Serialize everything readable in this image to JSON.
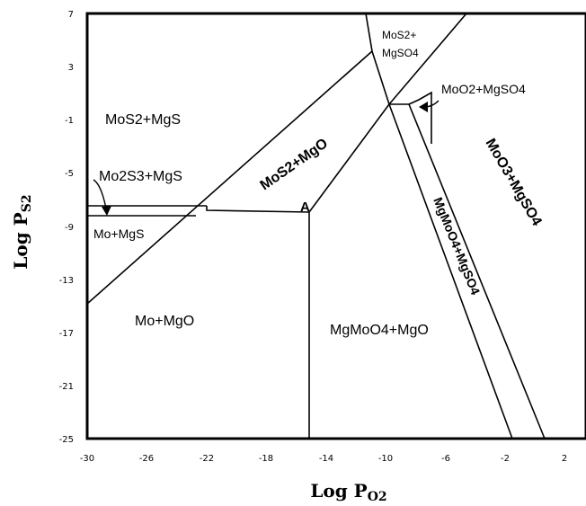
{
  "diagram": {
    "x_axis": {
      "title": "Log P",
      "subscript": "O2",
      "ticks": [
        "-30",
        "-26",
        "-22",
        "-18",
        "-14",
        "-10",
        "-6",
        "-2",
        "2"
      ]
    },
    "y_axis": {
      "title": "Log P",
      "subscript": "S2",
      "ticks": [
        "7",
        "3",
        "-1",
        "-5",
        "-9",
        "-13",
        "-17",
        "-21",
        "-25"
      ]
    },
    "regions": {
      "mos2_mgs": "MoS2+MgS",
      "mo2s3_mgs": "Mo2S3+MgS",
      "mo_mgs": "Mo+MgS",
      "mo_mgo": "Mo+MgO",
      "mos2_mgo": "MoS2+MgO",
      "mos2_mgso4_line1": "MoS2+",
      "mos2_mgso4_line2": "MgSO4",
      "moo2_mgso4": "MoO2+MgSO4",
      "moo3_mgso4": "MoO3+MgSO4",
      "mgmoo4_mgso4": "MgMoO4+MgSO4",
      "mgmoo4_mgo": "MgMoO4+MgO"
    },
    "point_label": "A"
  }
}
